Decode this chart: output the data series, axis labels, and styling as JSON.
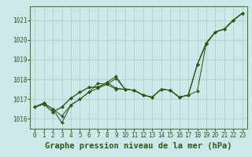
{
  "background_color": "#cde8e8",
  "plot_bg_color": "#cde8e8",
  "line_color": "#2d5a1b",
  "grid_color": "#aacccc",
  "xlabel": "Graphe pression niveau de la mer (hPa)",
  "xlabel_fontsize": 7.5,
  "xtick_fontsize": 5.5,
  "ytick_fontsize": 5.5,
  "ylim": [
    1015.5,
    1021.7
  ],
  "xlim": [
    -0.5,
    23.5
  ],
  "yticks": [
    1016,
    1017,
    1018,
    1019,
    1020,
    1021
  ],
  "xticks": [
    0,
    1,
    2,
    3,
    4,
    5,
    6,
    7,
    8,
    9,
    10,
    11,
    12,
    13,
    14,
    15,
    16,
    17,
    18,
    19,
    20,
    21,
    22,
    23
  ],
  "series": [
    [
      1016.6,
      1016.8,
      1016.5,
      1016.15,
      1016.7,
      1017.0,
      1017.35,
      1017.55,
      1017.75,
      1017.5,
      1017.5,
      1017.45,
      1017.2,
      1017.1,
      1017.5,
      1017.45,
      1017.1,
      1017.2,
      1018.75,
      1019.8,
      1020.4,
      1020.55,
      1021.0,
      1021.35
    ],
    [
      1016.6,
      1016.8,
      1016.5,
      1015.8,
      1016.7,
      1017.0,
      1017.35,
      1017.8,
      1017.75,
      1018.05,
      1017.5,
      1017.45,
      1017.2,
      1017.1,
      1017.5,
      1017.45,
      1017.1,
      1017.2,
      1017.4,
      1019.85,
      1020.4,
      1020.55,
      1021.0,
      1021.35
    ],
    [
      1016.6,
      1016.75,
      1016.35,
      1016.6,
      1017.05,
      1017.35,
      1017.6,
      1017.6,
      1017.85,
      1017.55,
      1017.5,
      1017.45,
      1017.2,
      1017.1,
      1017.5,
      1017.45,
      1017.1,
      1017.2,
      1018.75,
      1019.85,
      1020.4,
      1020.55,
      1021.0,
      1021.35
    ],
    [
      1016.6,
      1016.75,
      1016.35,
      1016.6,
      1017.05,
      1017.35,
      1017.6,
      1017.6,
      1017.85,
      1018.15,
      1017.5,
      1017.45,
      1017.2,
      1017.1,
      1017.5,
      1017.45,
      1017.1,
      1017.2,
      1018.75,
      1019.85,
      1020.4,
      1020.55,
      1021.0,
      1021.35
    ]
  ]
}
